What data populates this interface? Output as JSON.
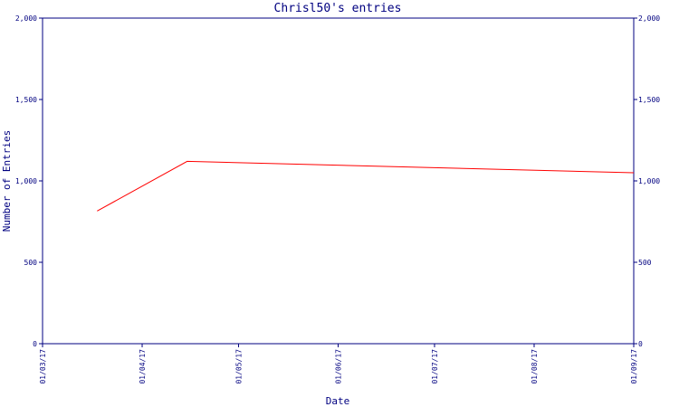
{
  "chart_data": {
    "type": "line",
    "title": "Chrisl50's entries",
    "xlabel": "Date",
    "ylabel": "Number of Entries",
    "x_ticks": [
      "01/03/17",
      "01/04/17",
      "01/05/17",
      "01/06/17",
      "01/07/17",
      "01/08/17",
      "01/09/17"
    ],
    "y_ticks": [
      "0",
      "500",
      "1,000",
      "1,500",
      "2,000"
    ],
    "ylim": [
      0,
      2000
    ],
    "xlim": [
      "2017-03-01",
      "2017-09-01"
    ],
    "right_axis": true,
    "grid": false,
    "series": [
      {
        "color": "#ff0000",
        "x": [
          "2017-03-18",
          "2017-04-15",
          "2017-09-01"
        ],
        "y": [
          815,
          1120,
          1050
        ]
      }
    ]
  }
}
